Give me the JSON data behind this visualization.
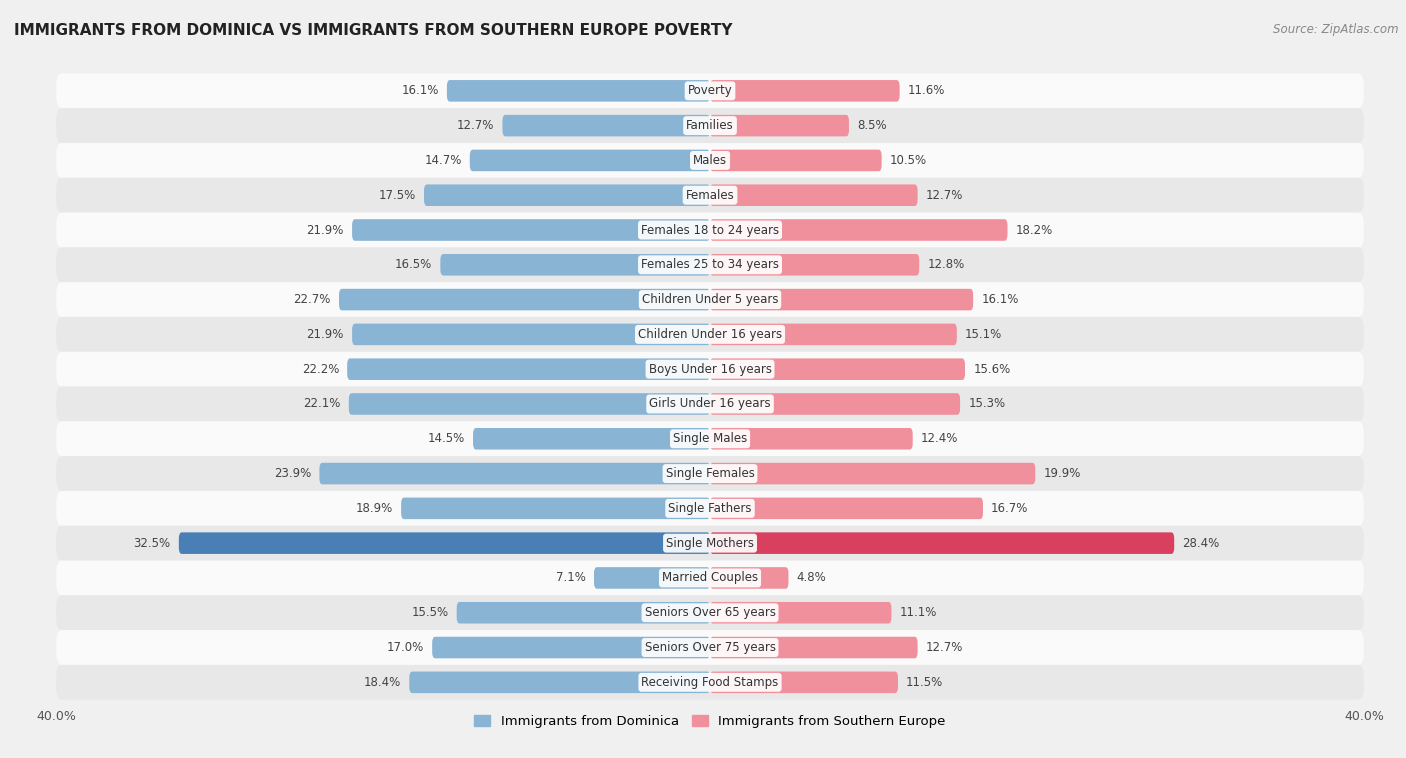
{
  "title": "IMMIGRANTS FROM DOMINICA VS IMMIGRANTS FROM SOUTHERN EUROPE POVERTY",
  "source": "Source: ZipAtlas.com",
  "categories": [
    "Poverty",
    "Families",
    "Males",
    "Females",
    "Females 18 to 24 years",
    "Females 25 to 34 years",
    "Children Under 5 years",
    "Children Under 16 years",
    "Boys Under 16 years",
    "Girls Under 16 years",
    "Single Males",
    "Single Females",
    "Single Fathers",
    "Single Mothers",
    "Married Couples",
    "Seniors Over 65 years",
    "Seniors Over 75 years",
    "Receiving Food Stamps"
  ],
  "dominica_values": [
    16.1,
    12.7,
    14.7,
    17.5,
    21.9,
    16.5,
    22.7,
    21.9,
    22.2,
    22.1,
    14.5,
    23.9,
    18.9,
    32.5,
    7.1,
    15.5,
    17.0,
    18.4
  ],
  "southern_europe_values": [
    11.6,
    8.5,
    10.5,
    12.7,
    18.2,
    12.8,
    16.1,
    15.1,
    15.6,
    15.3,
    12.4,
    19.9,
    16.7,
    28.4,
    4.8,
    11.1,
    12.7,
    11.5
  ],
  "dominica_color": "#8ab4d4",
  "southern_europe_color": "#f0909c",
  "dominica_highlight_color": "#4a7fb5",
  "southern_europe_highlight_color": "#d94060",
  "x_max": 40.0,
  "background_color": "#f0f0f0",
  "row_color_light": "#fafafa",
  "row_color_dark": "#e8e8e8",
  "title_fontsize": 11,
  "label_fontsize": 8.5,
  "value_fontsize": 8.5,
  "legend_dominica": "Immigrants from Dominica",
  "legend_southern": "Immigrants from Southern Europe"
}
